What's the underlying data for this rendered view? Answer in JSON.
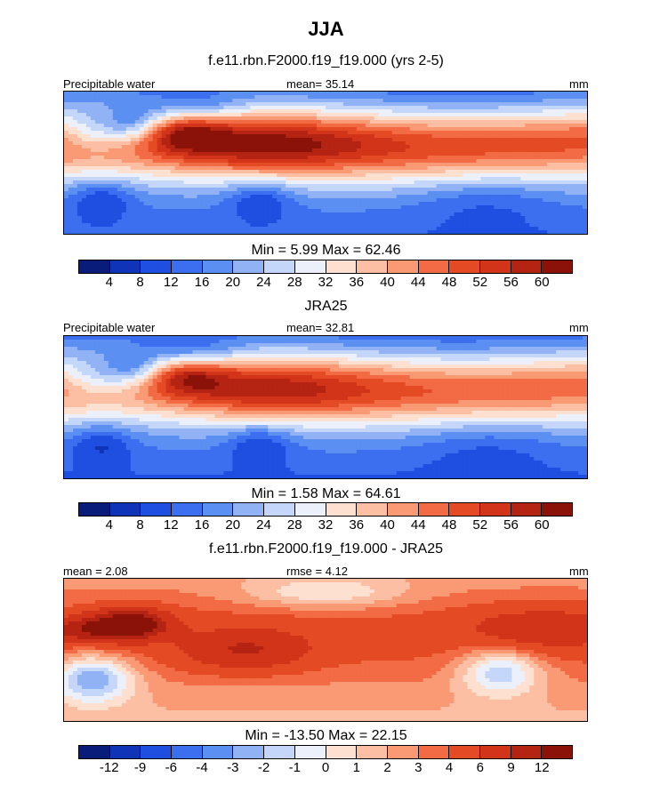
{
  "title": "JJA",
  "panels": [
    {
      "id": "model",
      "title": "f.e11.rbn.F2000.f19_f19.000 (yrs 2-5)",
      "left_label": "Precipitable water",
      "center_label": "mean=  35.14",
      "right_label": "mm",
      "minmax": "Min =   5.99 Max =  62.46",
      "field": "model"
    },
    {
      "id": "obs",
      "title": "JRA25",
      "left_label": "Precipitable water",
      "center_label": "mean=  32.81",
      "right_label": "mm",
      "minmax": "Min =   1.58 Max =  64.61",
      "field": "obs"
    },
    {
      "id": "diff",
      "title": "f.e11.rbn.F2000.f19_f19.000 - JRA25",
      "left_label": "mean =   2.08",
      "center_label": "rmse =   4.12",
      "right_label": "mm",
      "minmax": "Min = -13.50 Max =  22.15",
      "field": "diff"
    }
  ],
  "colorbars": {
    "abs": {
      "colors": [
        "#0a1c7a",
        "#1034b8",
        "#1f4fe0",
        "#3c6ef0",
        "#5c8ff2",
        "#91b3f6",
        "#c4d7fb",
        "#ecf0fb",
        "#fde0d0",
        "#fcbfa3",
        "#f99a75",
        "#f26b44",
        "#e44a24",
        "#d2341a",
        "#b52312",
        "#8a1209"
      ],
      "labels": [
        "4",
        "8",
        "12",
        "16",
        "20",
        "24",
        "28",
        "32",
        "36",
        "40",
        "44",
        "48",
        "52",
        "56",
        "60"
      ]
    },
    "diff": {
      "colors": [
        "#0a1c7a",
        "#1034b8",
        "#1f4fe0",
        "#3c6ef0",
        "#5c8ff2",
        "#91b3f6",
        "#c4d7fb",
        "#ecf0fb",
        "#fde0d0",
        "#fcbfa3",
        "#f99a75",
        "#f26b44",
        "#e44a24",
        "#d2341a",
        "#b52312",
        "#8a1209"
      ],
      "labels": [
        "-12",
        "-9",
        "-6",
        "-4",
        "-3",
        "-2",
        "-1",
        "0",
        "1",
        "2",
        "3",
        "4",
        "6",
        "9",
        "12"
      ]
    }
  },
  "chart_data": [
    {
      "type": "heatmap",
      "title": "f.e11.rbn.F2000.f19_f19.000 (yrs 2-5)",
      "variable": "Precipitable water",
      "units": "mm",
      "mean": 35.14,
      "min": 5.99,
      "max": 62.46,
      "levels": [
        4,
        8,
        12,
        16,
        20,
        24,
        28,
        32,
        36,
        40,
        44,
        48,
        52,
        56,
        60
      ]
    },
    {
      "type": "heatmap",
      "title": "JRA25",
      "variable": "Precipitable water",
      "units": "mm",
      "mean": 32.81,
      "min": 1.58,
      "max": 64.61,
      "levels": [
        4,
        8,
        12,
        16,
        20,
        24,
        28,
        32,
        36,
        40,
        44,
        48,
        52,
        56,
        60
      ]
    },
    {
      "type": "heatmap",
      "title": "f.e11.rbn.F2000.f19_f19.000 - JRA25",
      "units": "mm",
      "mean": 2.08,
      "rmse": 4.12,
      "min": -13.5,
      "max": 22.15,
      "levels": [
        -12,
        -9,
        -6,
        -4,
        -3,
        -2,
        -1,
        0,
        1,
        2,
        3,
        4,
        6,
        9,
        12
      ]
    }
  ]
}
